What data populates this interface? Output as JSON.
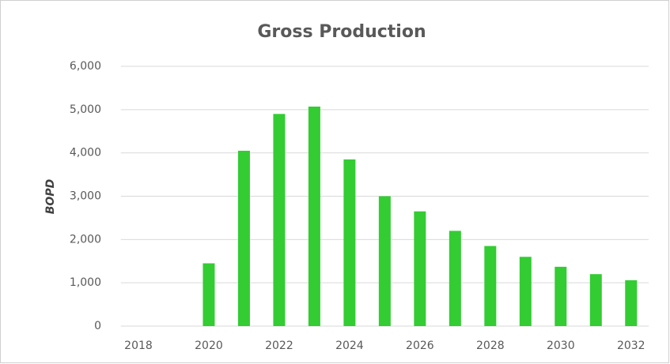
{
  "chart_data": {
    "type": "bar",
    "title": "Gross Production",
    "y_label": "BOPD",
    "categories": [
      "2018",
      null,
      "2020",
      null,
      "2022",
      null,
      "2024",
      null,
      "2026",
      null,
      "2028",
      null,
      "2030",
      null,
      "2032"
    ],
    "values": [
      0,
      0,
      1450,
      4050,
      4900,
      5070,
      3850,
      3000,
      2650,
      2200,
      1850,
      1600,
      1370,
      1200,
      1060
    ],
    "color": "#33cc33",
    "ylim": [
      0,
      6000
    ],
    "yticks": [
      0,
      {
        "value": 1000,
        "label": "1,000"
      },
      {
        "value": 2000,
        "label": "2,000"
      },
      {
        "value": 3000,
        "label": "3,000"
      },
      {
        "value": 4000,
        "label": "4,000"
      },
      {
        "value": 5000,
        "label": "5,000"
      },
      {
        "value": 6000,
        "label": "6,000"
      }
    ],
    "grid": true
  }
}
